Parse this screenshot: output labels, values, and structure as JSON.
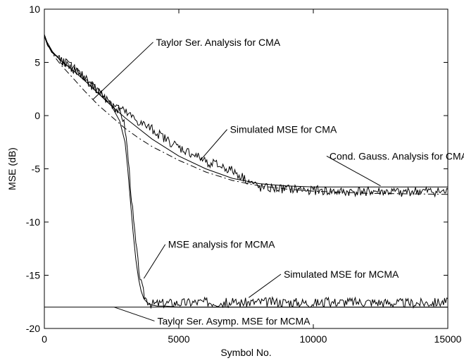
{
  "chart_data": {
    "type": "line",
    "title": "",
    "xlabel": "Symbol No.",
    "ylabel": "MSE (dB)",
    "xlim": [
      0,
      15000
    ],
    "ylim": [
      -20,
      10
    ],
    "xticks": [
      0,
      5000,
      10000,
      15000
    ],
    "yticks": [
      10,
      5,
      0,
      -5,
      -10,
      -15,
      -20
    ],
    "xtick_labels": [
      "0",
      "5000",
      "10000",
      "15000"
    ],
    "ytick_labels": [
      "10",
      "5",
      "0",
      "-5",
      "-10",
      "-15",
      "-20"
    ],
    "grid": false,
    "series": [
      {
        "key": "taylor_cma",
        "line_style": "dash-dot",
        "color": "#000000",
        "x": [
          0,
          100,
          300,
          600,
          1000,
          1500,
          2000,
          2500,
          3000,
          3500,
          4000,
          5000,
          6000,
          7000,
          8000,
          9000,
          10000,
          12000,
          15000
        ],
        "y": [
          7.6,
          6.8,
          5.8,
          4.8,
          3.7,
          2.3,
          1.0,
          -0.1,
          -1.2,
          -2.1,
          -2.9,
          -4.2,
          -5.3,
          -6.1,
          -6.6,
          -6.9,
          -7.1,
          -7.3,
          -7.4
        ]
      },
      {
        "key": "cond_gauss_cma",
        "line_style": "solid",
        "color": "#000000",
        "x": [
          0,
          100,
          300,
          600,
          1000,
          1500,
          2000,
          2500,
          3000,
          3500,
          4000,
          5000,
          6000,
          7000,
          8000,
          9000,
          10000,
          12000,
          15000
        ],
        "y": [
          7.6,
          6.9,
          6.0,
          5.2,
          4.4,
          3.3,
          2.1,
          0.9,
          -0.2,
          -1.2,
          -2.2,
          -3.8,
          -5.0,
          -5.9,
          -6.4,
          -6.6,
          -6.7,
          -6.7,
          -6.7
        ]
      },
      {
        "key": "sim_cma",
        "line_style": "noisy",
        "color": "#000000",
        "x": [
          0,
          100,
          300,
          600,
          1000,
          1500,
          2000,
          2500,
          3000,
          3500,
          4000,
          4500,
          5000,
          5500,
          6000,
          6500,
          7000,
          7500,
          8000,
          9000,
          10000,
          11000,
          12000,
          13000,
          14000,
          15000
        ],
        "y": [
          7.6,
          6.7,
          5.9,
          5.3,
          4.6,
          3.5,
          2.3,
          1.2,
          0.3,
          -0.6,
          -1.3,
          -2.2,
          -3.0,
          -3.6,
          -4.3,
          -4.7,
          -5.2,
          -6.0,
          -6.8,
          -6.9,
          -7.0,
          -7.2,
          -7.1,
          -7.2,
          -7.1,
          -7.2
        ]
      },
      {
        "key": "mse_analysis_mcma",
        "line_style": "solid",
        "color": "#000000",
        "x": [
          0,
          100,
          300,
          600,
          1000,
          1500,
          2000,
          2500,
          2800,
          3000,
          3100,
          3200,
          3300,
          3400,
          3500,
          3600,
          3700,
          3800,
          3900,
          4000,
          4200,
          4500,
          5000,
          6000,
          8000,
          10000,
          15000
        ],
        "y": [
          7.6,
          6.9,
          6.0,
          5.2,
          4.4,
          3.3,
          2.1,
          0.9,
          -0.5,
          -2.5,
          -5.0,
          -8.0,
          -11.0,
          -13.5,
          -15.3,
          -16.5,
          -17.2,
          -17.5,
          -17.7,
          -17.8,
          -17.9,
          -17.9,
          -18.0,
          -18.0,
          -18.0,
          -18.0,
          -18.0
        ]
      },
      {
        "key": "sim_mcma",
        "line_style": "noisy",
        "color": "#000000",
        "x": [
          0,
          100,
          300,
          600,
          1000,
          1500,
          2000,
          2500,
          2700,
          2900,
          3000,
          3100,
          3200,
          3300,
          3400,
          3500,
          3600,
          3700,
          3800,
          3900,
          4000,
          4500,
          5000,
          6000,
          7000,
          8000,
          9000,
          10000,
          11000,
          12000,
          13000,
          14000,
          15000
        ],
        "y": [
          7.6,
          6.7,
          5.9,
          5.3,
          4.6,
          3.5,
          2.3,
          1.2,
          0.6,
          0.0,
          -1.2,
          -3.5,
          -6.5,
          -9.5,
          -12.0,
          -14.2,
          -15.8,
          -16.8,
          -17.3,
          -17.5,
          -17.7,
          -17.6,
          -17.6,
          -17.5,
          -17.6,
          -17.5,
          -17.5,
          -17.6,
          -17.5,
          -17.5,
          -17.6,
          -17.6,
          -17.5
        ]
      },
      {
        "key": "taylor_asymp_mcma",
        "line_style": "solid",
        "color": "#000000",
        "x": [
          0,
          15000
        ],
        "y": [
          -18.0,
          -18.0
        ]
      }
    ],
    "annotations": [
      {
        "text": "Taylor Ser. Analysis for CMA",
        "x": 4150,
        "y": 6.9,
        "arrow_to": [
          1800,
          1.5
        ]
      },
      {
        "text": "Simulated MSE for CMA",
        "x": 6900,
        "y": -1.3,
        "arrow_to": [
          5800,
          -4.2
        ]
      },
      {
        "text": "Cond. Gauss. Analysis for CMA",
        "x": 10600,
        "y": -3.8,
        "arrow_to": [
          12500,
          -6.6
        ]
      },
      {
        "text": "MSE analysis for MCMA",
        "x": 4600,
        "y": -12.1,
        "arrow_to": [
          3700,
          -15.3
        ]
      },
      {
        "text": "Simulated MSE for MCMA",
        "x": 8900,
        "y": -14.9,
        "arrow_to": [
          7600,
          -17.1
        ]
      },
      {
        "text": "Taylor Ser. Asymp. MSE for MCMA",
        "x": 4200,
        "y": -19.3,
        "arrow_to": [
          2600,
          -18.0
        ]
      }
    ]
  }
}
